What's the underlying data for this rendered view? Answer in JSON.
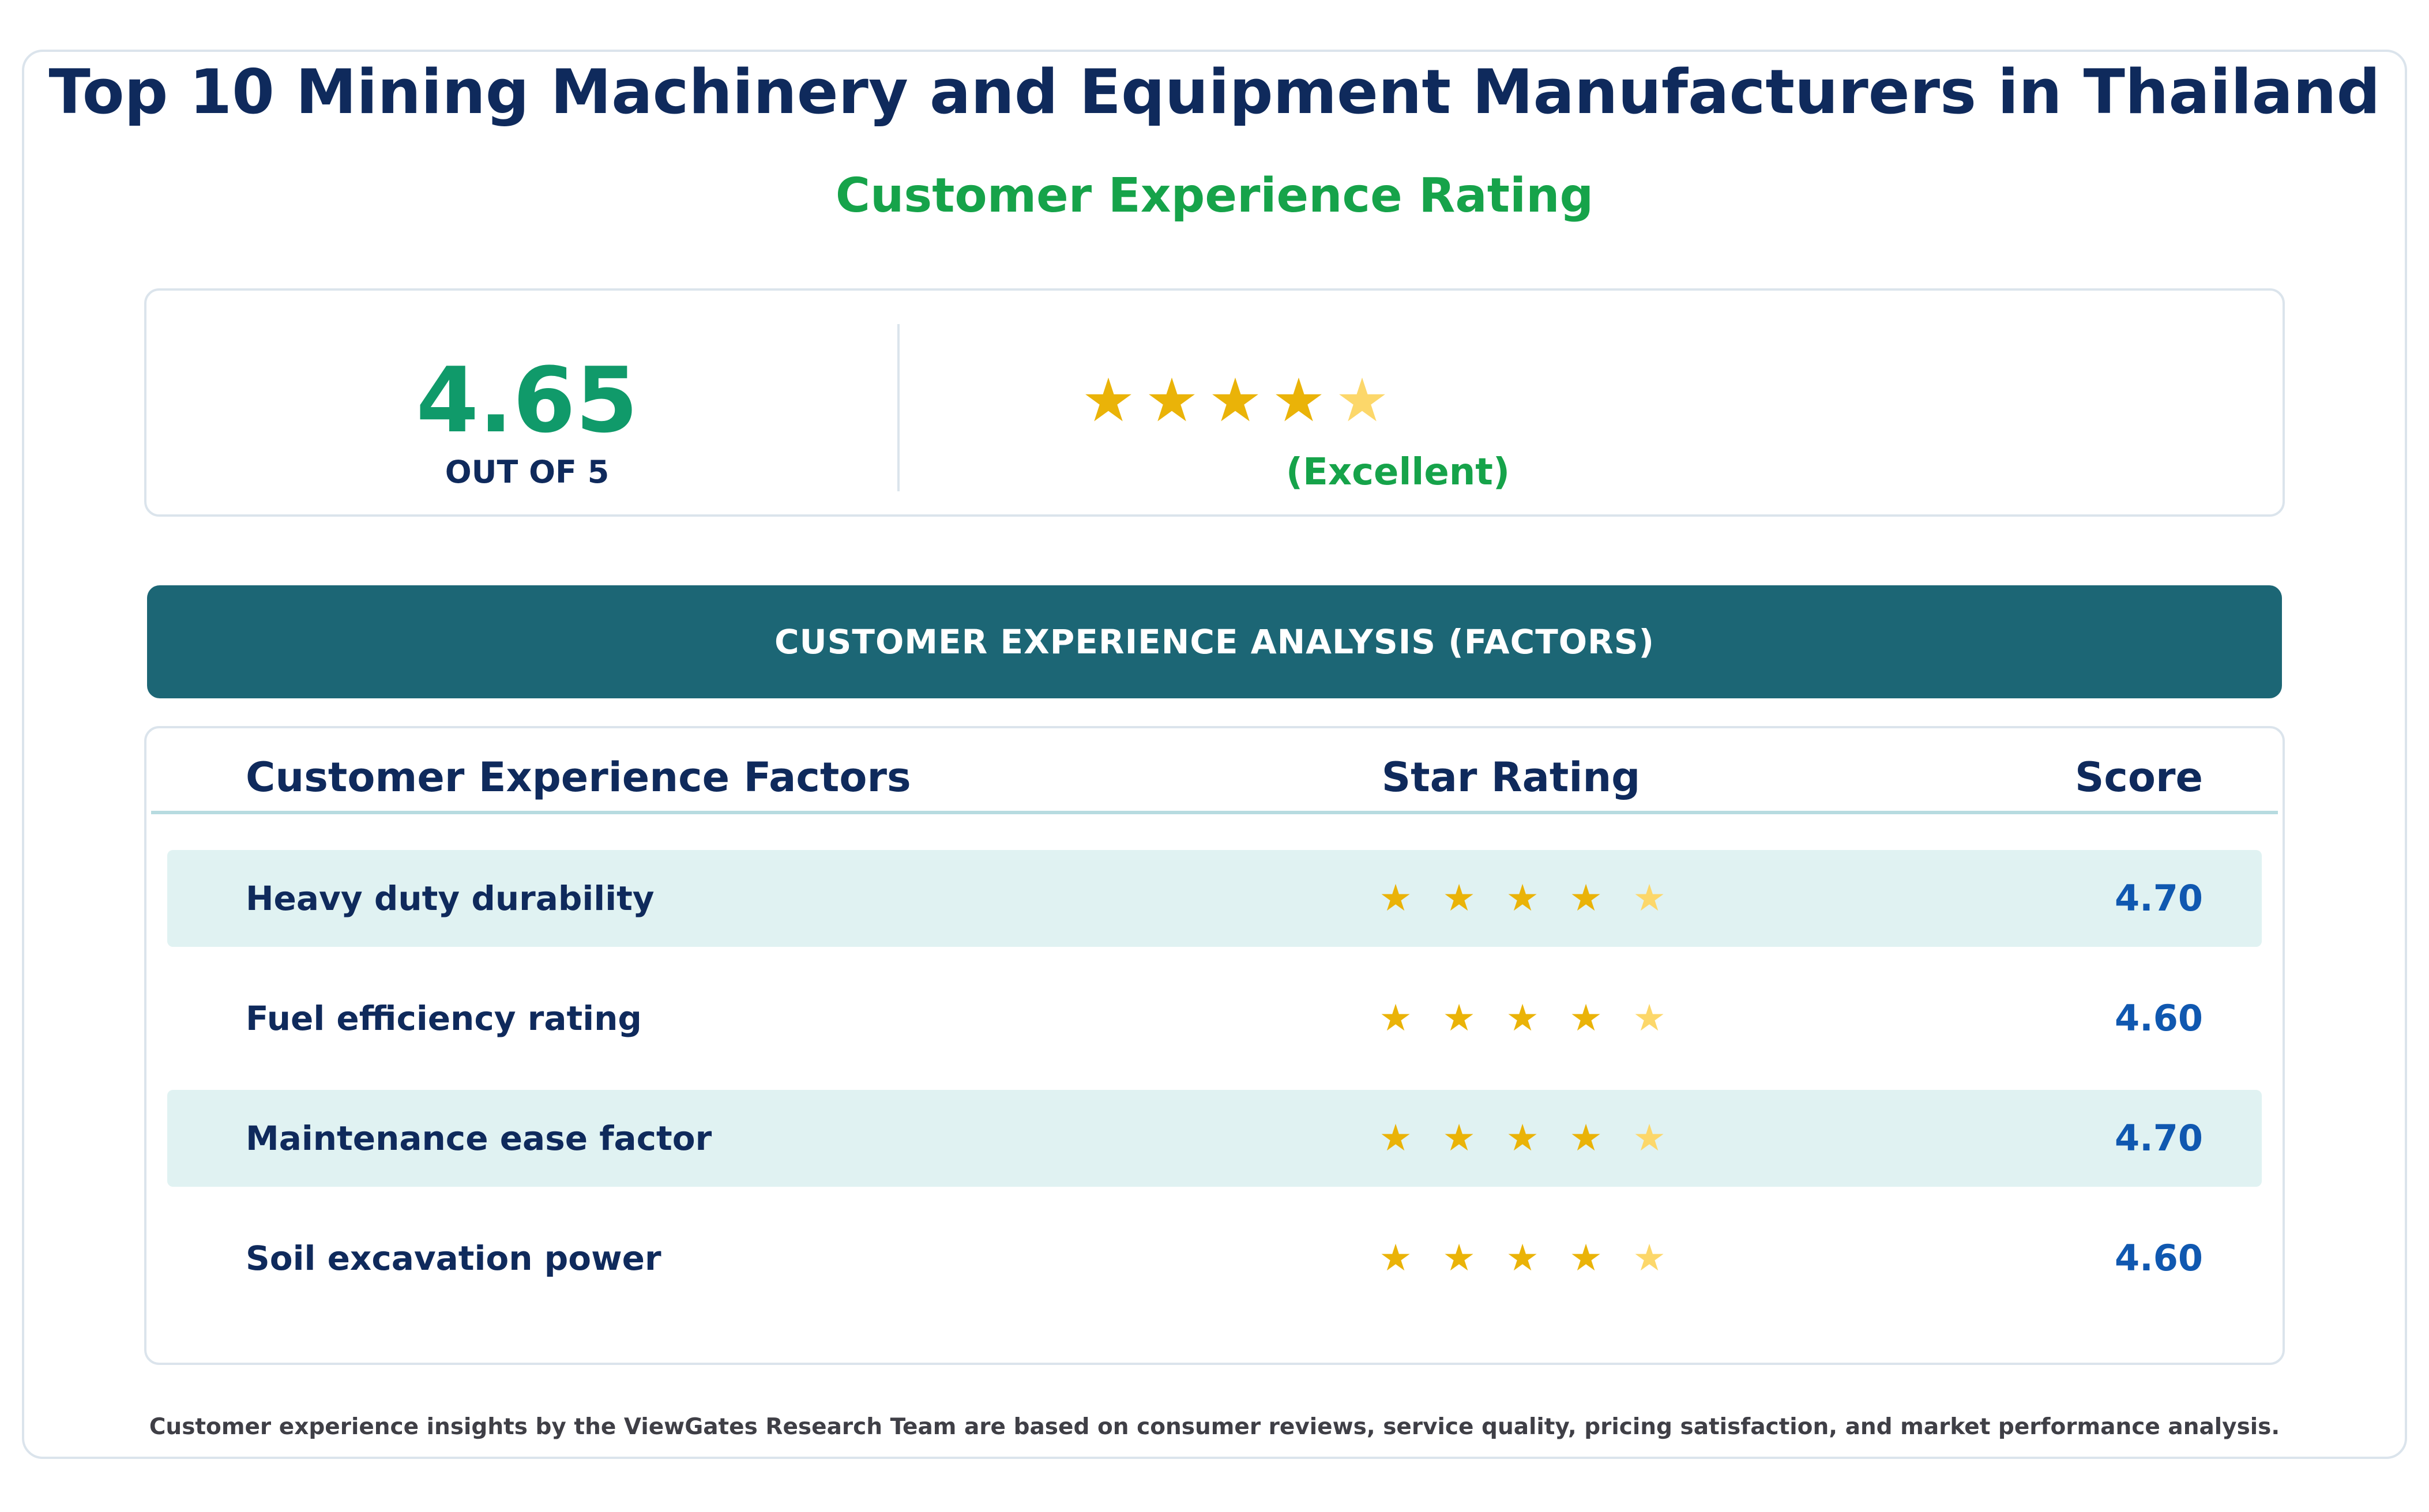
{
  "header": {
    "title": "Top 10 Mining Machinery and Equipment Manufacturers in Thailand",
    "subtitle": "Customer Experience Rating"
  },
  "summary": {
    "score": "4.65",
    "out_of_label": "OUT OF 5",
    "rating_value": 4.65,
    "rating_max": 5,
    "verdict": "(Excellent)",
    "stars": [
      {
        "icon": "star-full-icon",
        "glyph": "★"
      },
      {
        "icon": "star-full-icon",
        "glyph": "★"
      },
      {
        "icon": "star-full-icon",
        "glyph": "★"
      },
      {
        "icon": "star-full-icon",
        "glyph": "★"
      },
      {
        "icon": "star-partial-icon",
        "glyph": "★"
      }
    ]
  },
  "section_banner": "CUSTOMER EXPERIENCE ANALYSIS (FACTORS)",
  "table": {
    "columns": {
      "factor": "Customer Experience Factors",
      "stars": "Star Rating",
      "score": "Score"
    },
    "rows": [
      {
        "factor": "Heavy duty durability",
        "score": "4.70",
        "rating_value": 4.7
      },
      {
        "factor": "Fuel efficiency rating",
        "score": "4.60",
        "rating_value": 4.6
      },
      {
        "factor": "Maintenance ease factor",
        "score": "4.70",
        "rating_value": 4.7
      },
      {
        "factor": "Soil excavation power",
        "score": "4.60",
        "rating_value": 4.6
      }
    ],
    "star_glyph": "★"
  },
  "footnote": "Customer experience insights by the ViewGates Research Team are based on consumer reviews, service quality, pricing satisfaction, and market performance analysis.",
  "colors": {
    "title": "#0f2a5c",
    "accent_green": "#16a34a",
    "score_green": "#109a6a",
    "banner": "#1c6675",
    "row_shade": "#e0f2f2",
    "star_gold": "#eab308",
    "star_faded": "#fcd76a",
    "score_blue": "#1058b0"
  }
}
